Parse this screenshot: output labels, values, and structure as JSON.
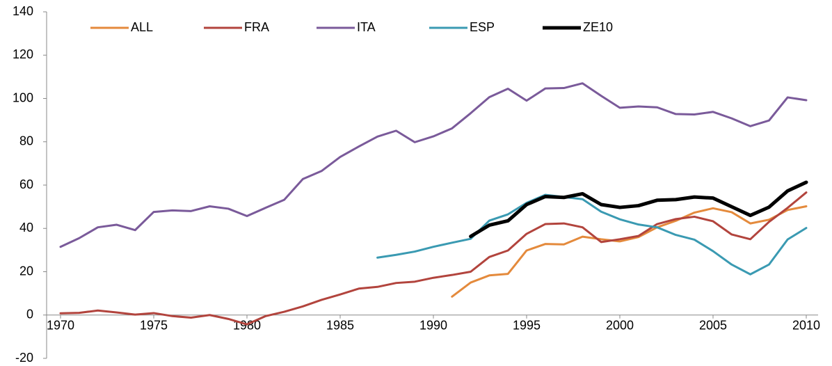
{
  "chart_data": {
    "type": "line",
    "x": [
      1970,
      1971,
      1972,
      1973,
      1974,
      1975,
      1976,
      1977,
      1978,
      1979,
      1980,
      1981,
      1982,
      1983,
      1984,
      1985,
      1986,
      1987,
      1988,
      1989,
      1990,
      1991,
      1992,
      1993,
      1994,
      1995,
      1996,
      1997,
      1998,
      1999,
      2000,
      2001,
      2002,
      2003,
      2004,
      2005,
      2006,
      2007,
      2008,
      2009,
      2010
    ],
    "series": [
      {
        "name": "ALL",
        "color": "#e48a3c",
        "values": [
          null,
          null,
          null,
          null,
          null,
          null,
          null,
          null,
          null,
          null,
          null,
          null,
          null,
          null,
          null,
          null,
          null,
          null,
          null,
          null,
          null,
          8.5,
          15,
          18.3,
          19,
          29.8,
          32.8,
          32.6,
          36.2,
          35,
          34,
          36,
          40.5,
          43.5,
          47.3,
          49.3,
          47.5,
          42.3,
          44,
          48.5,
          50.2
        ]
      },
      {
        "name": "FRA",
        "color": "#b2443d",
        "values": [
          0.8,
          1.0,
          2.1,
          1.2,
          0.2,
          0.9,
          -0.5,
          -1.2,
          0,
          -1.8,
          -4.3,
          -0.5,
          1.5,
          4,
          7,
          9.5,
          12.2,
          13,
          14.8,
          15.4,
          17.2,
          18.5,
          20,
          26.8,
          29.8,
          37.5,
          42,
          42.3,
          40.5,
          33.7,
          35,
          36.5,
          42,
          44.3,
          45.4,
          43.3,
          37.2,
          35,
          43,
          49.5,
          56.6
        ]
      },
      {
        "name": "ITA",
        "color": "#7a5a9a",
        "values": [
          31.5,
          35.5,
          40.5,
          41.7,
          39.2,
          47.6,
          48.3,
          48,
          50.2,
          49.1,
          45.7,
          49.5,
          53.2,
          62.8,
          66.5,
          73,
          77.8,
          82.4,
          85.1,
          79.8,
          82.5,
          86.2,
          93.2,
          100.6,
          104.5,
          99,
          104.6,
          104.8,
          107,
          101.2,
          95.7,
          96.3,
          95.9,
          92.8,
          92.6,
          93.8,
          90.8,
          87.2,
          89.8,
          100.5,
          99.2
        ]
      },
      {
        "name": "ESP",
        "color": "#3a9ab2",
        "values": [
          null,
          null,
          null,
          null,
          null,
          null,
          null,
          null,
          null,
          null,
          null,
          null,
          null,
          null,
          null,
          null,
          null,
          26.5,
          27.8,
          29.3,
          31.5,
          33.4,
          35.2,
          43.6,
          46.5,
          51.8,
          55.5,
          54.5,
          53.5,
          47.7,
          44.2,
          41.8,
          40.5,
          37,
          34.8,
          29.5,
          23.3,
          18.8,
          23.3,
          34.9,
          40.2
        ]
      },
      {
        "name": "ZE10",
        "color": "#000000",
        "values": [
          null,
          null,
          null,
          null,
          null,
          null,
          null,
          null,
          null,
          null,
          null,
          null,
          null,
          null,
          null,
          null,
          null,
          null,
          null,
          null,
          null,
          null,
          36.3,
          41.5,
          43.5,
          51,
          54.7,
          54.3,
          56,
          51,
          49.7,
          50.5,
          53,
          53.3,
          54.5,
          54,
          50,
          46,
          49.8,
          57.3,
          61.3
        ]
      }
    ],
    "xlim": [
      1970,
      2010
    ],
    "xticks": [
      1970,
      1975,
      1980,
      1985,
      1990,
      1995,
      2000,
      2005,
      2010
    ],
    "ylim": [
      -20,
      140
    ],
    "yticks": [
      -20,
      0,
      20,
      40,
      60,
      80,
      100,
      120,
      140
    ],
    "grid": false,
    "legend": "top"
  }
}
